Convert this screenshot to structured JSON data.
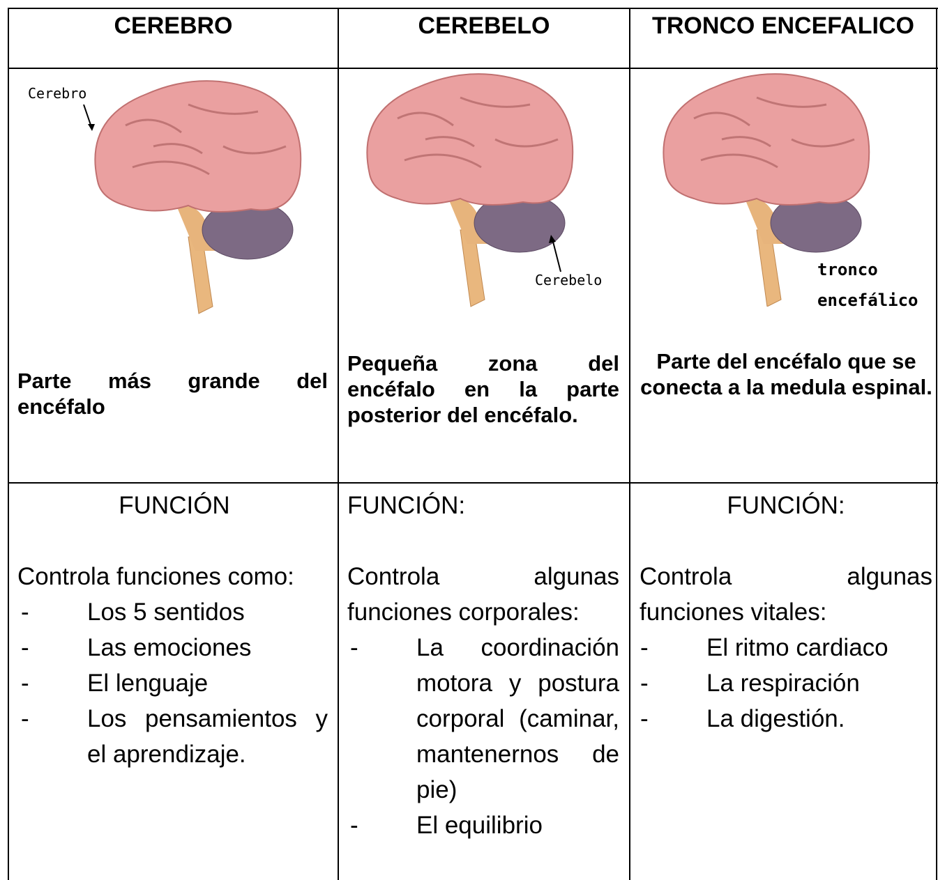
{
  "table": {
    "columns": [
      {
        "title": "CEREBRO",
        "image_label": "Cerebro",
        "description": "Parte más grande del encéfalo",
        "function_title": "FUNCIÓN",
        "function_intro": "Controla funciones como:",
        "items": [
          "Los 5 sentidos",
          "Las emociones",
          "El lenguaje",
          "Los pensamientos y el aprendizaje."
        ]
      },
      {
        "title": "CEREBELO",
        "image_label": "Cerebelo",
        "description": "Pequeña zona del encéfalo en la parte posterior del encéfalo.",
        "function_title": "FUNCIÓN:",
        "function_intro": "Controla algunas funciones corporales:",
        "items": [
          "La coordinación motora y postura corporal (caminar, mantenernos de pie)",
          "El equilibrio"
        ]
      },
      {
        "title": "TRONCO ENCEFALICO",
        "image_label": "tronco encefálico",
        "description": "Parte del encéfalo que se conecta a la medula espinal.",
        "function_title": "FUNCIÓN:",
        "function_intro": "Controla algunas funciones vitales:",
        "items": [
          "El ritmo cardiaco",
          "La respiración",
          "La digestión."
        ]
      }
    ]
  }
}
